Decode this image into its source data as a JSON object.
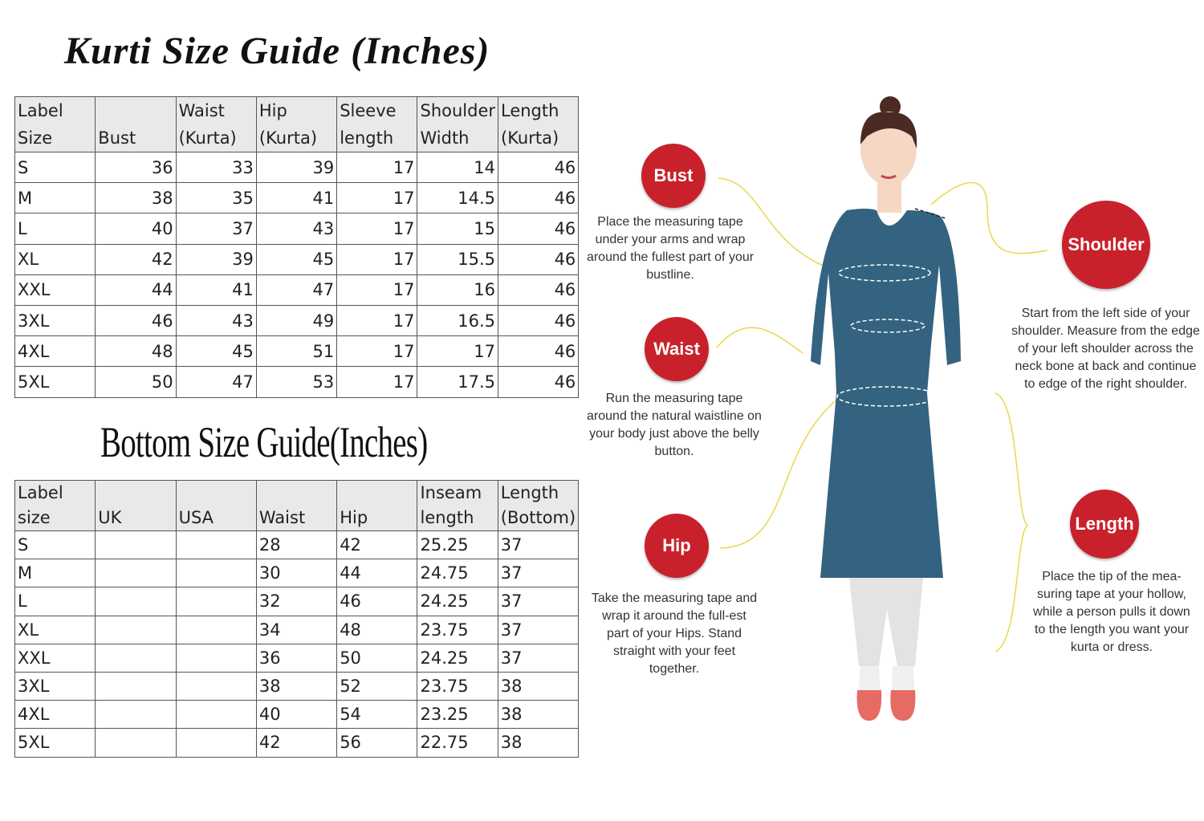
{
  "kurti": {
    "title": "Kurti Size Guide (Inches)",
    "headers": [
      "Label\nSize",
      "Bust",
      "Waist\n(Kurta)",
      "Hip\n(Kurta)",
      "Sleeve\nlength",
      "Shoulder\nWidth",
      "Length\n(Kurta)"
    ],
    "rows": [
      [
        "S",
        "36",
        "33",
        "39",
        "17",
        "14",
        "46"
      ],
      [
        "M",
        "38",
        "35",
        "41",
        "17",
        "14.5",
        "46"
      ],
      [
        "L",
        "40",
        "37",
        "43",
        "17",
        "15",
        "46"
      ],
      [
        "XL",
        "42",
        "39",
        "45",
        "17",
        "15.5",
        "46"
      ],
      [
        "XXL",
        "44",
        "41",
        "47",
        "17",
        "16",
        "46"
      ],
      [
        "3XL",
        "46",
        "43",
        "49",
        "17",
        "16.5",
        "46"
      ],
      [
        "4XL",
        "48",
        "45",
        "51",
        "17",
        "17",
        "46"
      ],
      [
        "5XL",
        "50",
        "47",
        "53",
        "17",
        "17.5",
        "46"
      ]
    ]
  },
  "bottom": {
    "title": "Bottom Size Guide(Inches)",
    "headers": [
      "Label size",
      "UK",
      "USA",
      "Waist",
      "Hip",
      "Inseam\nlength",
      "Length\n(Bottom)"
    ],
    "rows": [
      [
        "S",
        "",
        "",
        "28",
        "42",
        "25.25",
        "37"
      ],
      [
        "M",
        "",
        "",
        "30",
        "44",
        "24.75",
        "37"
      ],
      [
        "L",
        "",
        "",
        "32",
        "46",
        "24.25",
        "37"
      ],
      [
        "XL",
        "",
        "",
        "34",
        "48",
        "23.75",
        "37"
      ],
      [
        "XXL",
        "",
        "",
        "36",
        "50",
        "24.25",
        "37"
      ],
      [
        "3XL",
        "",
        "",
        "38",
        "52",
        "23.75",
        "38"
      ],
      [
        "4XL",
        "",
        "",
        "40",
        "54",
        "23.25",
        "38"
      ],
      [
        "5XL",
        "",
        "",
        "42",
        "56",
        "22.75",
        "38"
      ]
    ]
  },
  "guide": {
    "accent": "#c9212b",
    "kurta_color": "#336380",
    "bust": {
      "label": "Bust",
      "text": "Place the measuring tape under your arms and wrap around the fullest part of your bustline."
    },
    "waist": {
      "label": "Waist",
      "text": "Run the measuring tape around the natural waistline on your body just above the belly button."
    },
    "hip": {
      "label": "Hip",
      "text": "Take the measuring tape and wrap it around the full-est part of your Hips. Stand straight with your feet together."
    },
    "shoulder": {
      "label": "Shoulder",
      "text": "Start from the left side of your shoulder. Measure from the edge of your left shoulder across the neck bone at back and continue to edge of the right shoulder."
    },
    "length": {
      "label": "Length",
      "text": "Place the tip of the mea-suring tape at your hollow, while a person pulls it down to the length you want your kurta or dress."
    }
  }
}
